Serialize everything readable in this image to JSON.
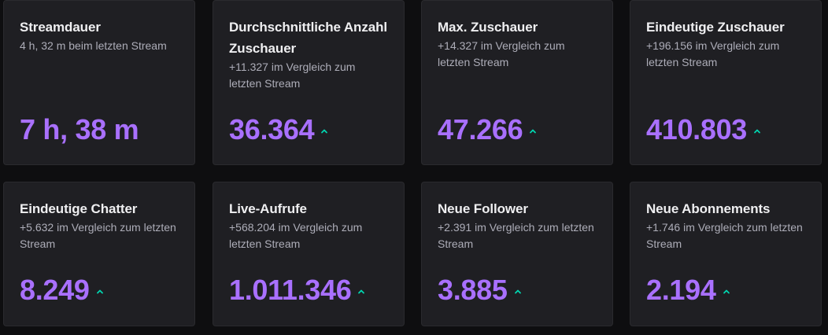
{
  "accent_color": "#a970ff",
  "trend_color": "#00d6b0",
  "cards": [
    {
      "title": "Streamdauer",
      "subtitle": "4 h, 32 m beim letzten Stream",
      "value": "7 h, 38 m",
      "trend": "none"
    },
    {
      "title": "Durchschnittliche Anzahl Zuschauer",
      "subtitle": "+11.327 im Vergleich zum letzten Stream",
      "value": "36.364",
      "trend": "up"
    },
    {
      "title": "Max. Zuschauer",
      "subtitle": "+14.327 im Vergleich zum letzten Stream",
      "value": "47.266",
      "trend": "up"
    },
    {
      "title": "Eindeutige Zuschauer",
      "subtitle": "+196.156 im Vergleich zum letzten Stream",
      "value": "410.803",
      "trend": "up"
    },
    {
      "title": "Eindeutige Chatter",
      "subtitle": "+5.632 im Vergleich zum letzten Stream",
      "value": "8.249",
      "trend": "up"
    },
    {
      "title": "Live-Aufrufe",
      "subtitle": "+568.204 im Vergleich zum letzten Stream",
      "value": "1.011.346",
      "trend": "up"
    },
    {
      "title": "Neue Follower",
      "subtitle": "+2.391 im Vergleich zum letzten Stream",
      "value": "3.885",
      "trend": "up"
    },
    {
      "title": "Neue Abonnements",
      "subtitle": "+1.746 im Vergleich zum letzten Stream",
      "value": "2.194",
      "trend": "up"
    }
  ]
}
